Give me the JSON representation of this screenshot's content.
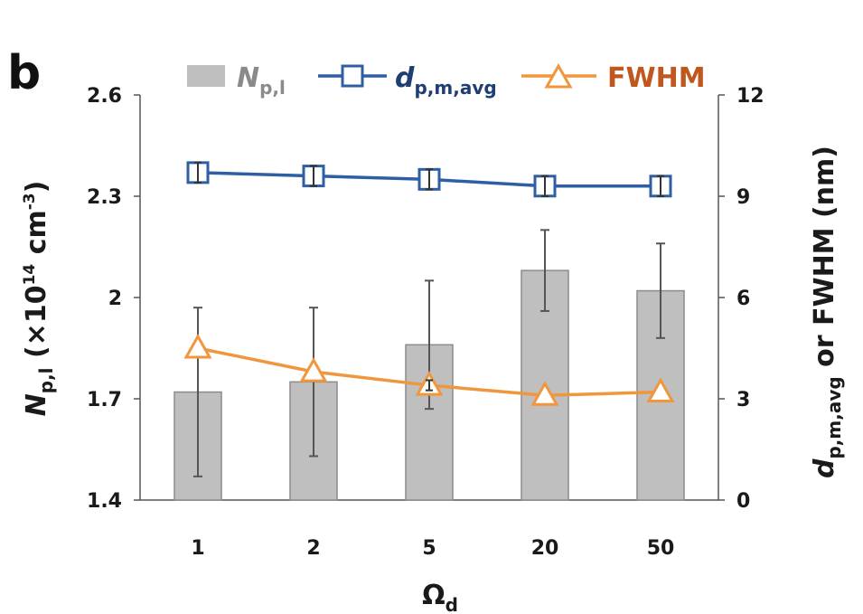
{
  "chart_data": {
    "type": "bar+line",
    "panel_label": "b",
    "categories": [
      "1",
      "2",
      "5",
      "20",
      "50"
    ],
    "xlabel": {
      "main": "Ω",
      "sub": "d"
    },
    "y_left": {
      "label": {
        "main": "N",
        "sub": "p,l",
        "rest": " (×10",
        "sup": "14",
        "unit": " cm",
        "unit_sup": "-3",
        "close": ")"
      },
      "range": [
        1.4,
        2.6
      ],
      "ticks": [
        "1.4",
        "1.7",
        "2",
        "2.3",
        "2.6"
      ],
      "tick_values": [
        1.4,
        1.7,
        2.0,
        2.3,
        2.6
      ]
    },
    "y_right": {
      "label": {
        "main": "d",
        "sub": "p,m,avg",
        "rest": " or FWHM (nm)"
      },
      "range": [
        0,
        12
      ],
      "ticks": [
        "0",
        "3",
        "6",
        "9",
        "12"
      ],
      "tick_values": [
        0,
        3,
        6,
        9,
        12
      ]
    },
    "series": [
      {
        "name": "N_p,l",
        "legend_main": "N",
        "legend_sub": "p,l",
        "kind": "bar",
        "axis": "left",
        "color": "#bfbfbf",
        "edge": "#8c8c8c",
        "values": [
          1.72,
          1.75,
          1.86,
          2.08,
          2.02
        ],
        "errors": [
          0.25,
          0.22,
          0.19,
          0.12,
          0.14
        ]
      },
      {
        "name": "d_p,m,avg",
        "legend_main": "d",
        "legend_sub": "p,m,avg",
        "kind": "line",
        "axis": "right",
        "color": "#2e5fa3",
        "label_color": "#1f3f73",
        "marker": "square",
        "values": [
          9.7,
          9.6,
          9.5,
          9.3,
          9.3
        ],
        "errors": [
          0.3,
          0.3,
          0.3,
          0.3,
          0.3
        ]
      },
      {
        "name": "FWHM",
        "legend_main": "FWHM",
        "legend_sub": "",
        "kind": "line",
        "axis": "right",
        "color": "#f0963c",
        "label_color": "#c0571e",
        "marker": "triangle",
        "values": [
          4.5,
          3.8,
          3.4,
          3.1,
          3.2
        ],
        "errors": [
          0,
          0,
          0.15,
          0,
          0
        ]
      }
    ]
  }
}
